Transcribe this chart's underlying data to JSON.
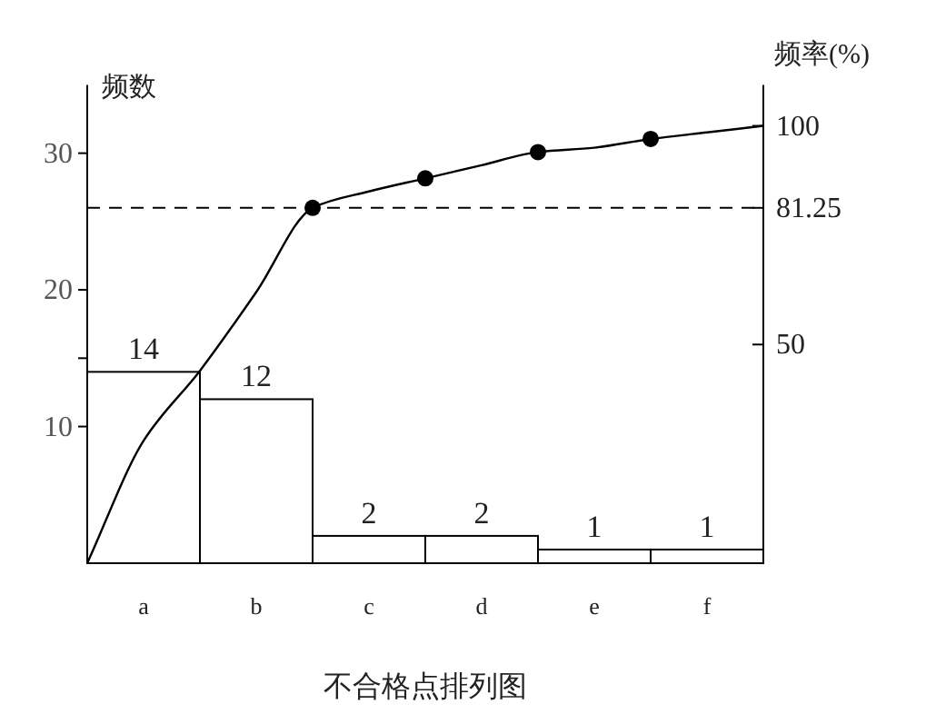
{
  "chart_data": {
    "type": "bar",
    "title": "不合格点排列图",
    "ylabel": "频数",
    "y2label": "频率(%)",
    "categories": [
      null,
      "a",
      null,
      "b",
      null,
      "c",
      null,
      "d",
      null,
      "e",
      null,
      "f",
      null
    ],
    "ylim": [
      0,
      35
    ],
    "yticks": [
      10,
      {
        "value": 15,
        "label": null
      },
      20,
      30
    ],
    "y2lim": [
      0,
      109.375
    ],
    "y2ticks": [
      50,
      81.25,
      100
    ],
    "grid": false,
    "series": [
      {
        "color": "#ffffff",
        "values": [
          null,
          14,
          null,
          12,
          null,
          2,
          null,
          2,
          null,
          1,
          null,
          1,
          null
        ],
        "value_labels": [
          null,
          "14",
          null,
          "12",
          null,
          "2",
          null,
          "2",
          null,
          "1",
          null,
          "1",
          null
        ]
      },
      {
        "type": "line",
        "axis": "y2",
        "color": "#000000",
        "values": [
          0,
          28,
          44,
          62,
          81.25,
          85,
          88,
          91,
          94,
          95,
          97,
          98.5,
          100
        ],
        "marker": "none",
        "line_style": "solid"
      },
      {
        "type": "scatter",
        "axis": "y2",
        "color": "#000000",
        "values": [
          null,
          null,
          null,
          null,
          81.25,
          null,
          88,
          null,
          94,
          null,
          97,
          null,
          null
        ],
        "marker": "circle"
      }
    ],
    "ref_lines": [
      {
        "axis": "y2",
        "value": 81.25,
        "color": "#000000",
        "line_style": "dashed"
      }
    ]
  }
}
